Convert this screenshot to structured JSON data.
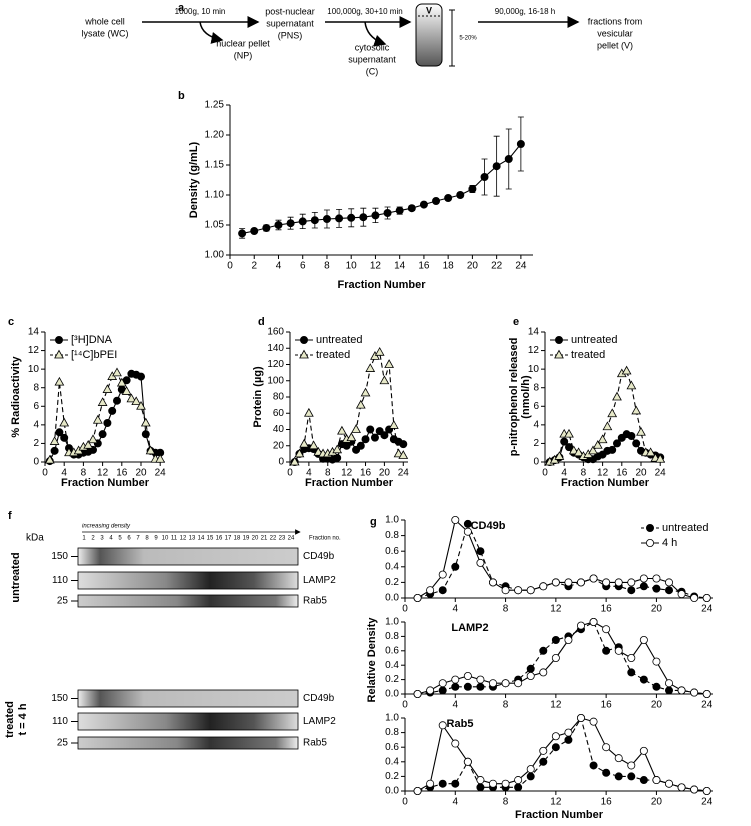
{
  "panel_letters": [
    "a",
    "b",
    "c",
    "d",
    "e",
    "f",
    "g"
  ],
  "scheme": [
    "whole cell",
    "lysate (WC)",
    "1000g, 10 min",
    "nuclear pellet",
    "(NP)",
    "post-nuclear",
    "supernatant",
    "(PNS)",
    "100,000g, 30+10 min",
    "cytosolic",
    "supernatant",
    "(C)",
    "V",
    "5-20%",
    "90,000g, 16-18 h",
    "fractions from",
    "vesicular",
    "pellet (V)"
  ],
  "blot": {
    "unit": "kDa",
    "direction": "increasing density",
    "lanes": [
      "1",
      "2",
      "3",
      "4",
      "5",
      "6",
      "7",
      "8",
      "9",
      "10",
      "11",
      "12",
      "13",
      "14",
      "15",
      "16",
      "17",
      "18",
      "19",
      "20",
      "21",
      "22",
      "23",
      "24"
    ],
    "lanes_label": "Fraction no.",
    "groups": [
      {
        "label": [
          "untreated"
        ],
        "rows": [
          {
            "kda": "150",
            "protein": "CD49b"
          },
          {
            "kda": "110",
            "protein": "LAMP2"
          },
          {
            "kda": "25",
            "protein": "Rab5"
          }
        ]
      },
      {
        "label": [
          "treated",
          "t = 4 h"
        ],
        "rows": [
          {
            "kda": "150",
            "protein": "CD49b"
          },
          {
            "kda": "110",
            "protein": "LAMP2"
          },
          {
            "kda": "25",
            "protein": "Rab5"
          }
        ]
      }
    ]
  },
  "chart_data": [
    {
      "type": "line",
      "ylabel": "Density (g/mL)",
      "xlabel": "Fraction Number",
      "x": [
        1,
        2,
        3,
        4,
        5,
        6,
        7,
        8,
        9,
        10,
        11,
        12,
        13,
        14,
        15,
        16,
        17,
        18,
        19,
        20,
        21,
        22,
        23,
        24
      ],
      "xlim": [
        0,
        25
      ],
      "xticks": [
        0,
        2,
        4,
        6,
        8,
        10,
        12,
        14,
        16,
        18,
        20,
        22,
        24
      ],
      "ylim": [
        1.0,
        1.25
      ],
      "yticks": [
        {
          "value": 1.0,
          "label": "1.00"
        },
        1.05,
        {
          "value": 1.1,
          "label": "1.10"
        },
        1.15,
        {
          "value": 1.2,
          "label": "1.20"
        },
        1.25
      ],
      "series": [
        {
          "color": "#000",
          "fill": "#000",
          "marker": "circle",
          "dash": false,
          "values": [
            1.036,
            1.04,
            1.045,
            1.05,
            1.053,
            1.056,
            1.058,
            1.06,
            1.061,
            1.062,
            1.063,
            1.066,
            1.07,
            1.074,
            1.078,
            1.084,
            1.09,
            1.095,
            1.1,
            1.11,
            1.13,
            1.148,
            1.16,
            1.185
          ],
          "errors": [
            0.008,
            0.003,
            0.005,
            0.008,
            0.01,
            0.012,
            0.013,
            0.015,
            0.015,
            0.015,
            0.015,
            0.012,
            0.01,
            0.006,
            0.004,
            0.003,
            0.003,
            0.003,
            0.004,
            0.006,
            0.03,
            0.05,
            0.05,
            0.045
          ]
        }
      ]
    },
    {
      "type": "line",
      "ylabel": "% Radioactivity",
      "xlabel": "Fraction Number",
      "legend": "top-left",
      "x": [
        1,
        2,
        3,
        4,
        5,
        6,
        7,
        8,
        9,
        10,
        11,
        12,
        13,
        14,
        15,
        16,
        17,
        18,
        19,
        20,
        21,
        22,
        23,
        24
      ],
      "xlim": [
        0,
        25
      ],
      "xticks": [
        0,
        4,
        8,
        12,
        16,
        20,
        24
      ],
      "ylim": [
        0,
        14
      ],
      "yticks": [
        0,
        2,
        4,
        6,
        8,
        10,
        12,
        14
      ],
      "series": [
        {
          "name": "[³H]DNA",
          "color": "#000",
          "fill": "#000",
          "marker": "circle",
          "dash": false,
          "values": [
            0.1,
            1.2,
            3.2,
            2.6,
            1.5,
            0.8,
            0.8,
            1.0,
            1.1,
            1.3,
            2.0,
            3.0,
            4.2,
            5.5,
            6.6,
            7.8,
            8.8,
            9.5,
            9.4,
            9.2,
            3.0,
            1.2,
            1.0,
            1.0
          ]
        },
        {
          "name": "[¹⁴C]bPEI",
          "color": "#000",
          "fill": "#e6e8c8",
          "marker": "triangle",
          "dash": true,
          "values": [
            0.2,
            2.2,
            8.6,
            4.2,
            1.0,
            1.0,
            1.2,
            1.6,
            1.8,
            2.4,
            4.5,
            6.4,
            7.8,
            9.2,
            9.6,
            8.5,
            7.6,
            6.8,
            6.5,
            6.0,
            4.2,
            1.2,
            0.3,
            0.3
          ]
        }
      ]
    },
    {
      "type": "line",
      "ylabel": "Protein (µg)",
      "xlabel": "Fraction Number",
      "legend": "top-left",
      "x": [
        1,
        2,
        3,
        4,
        5,
        6,
        7,
        8,
        9,
        10,
        11,
        12,
        13,
        14,
        15,
        16,
        17,
        18,
        19,
        20,
        21,
        22,
        23,
        24
      ],
      "xlim": [
        0,
        25
      ],
      "xticks": [
        0,
        4,
        8,
        12,
        16,
        20,
        24
      ],
      "ylim": [
        0,
        160
      ],
      "yticks": [
        0,
        20,
        40,
        60,
        80,
        100,
        120,
        140,
        160
      ],
      "series": [
        {
          "name": "untreated",
          "color": "#000",
          "fill": "#000",
          "marker": "circle",
          "dash": false,
          "values": [
            0,
            10,
            16,
            17,
            16,
            10,
            4,
            4,
            3,
            5,
            22,
            20,
            25,
            15,
            20,
            28,
            40,
            30,
            38,
            33,
            40,
            28,
            25,
            22
          ]
        },
        {
          "name": "treated",
          "color": "#000",
          "fill": "#e6e8c8",
          "marker": "triangle",
          "dash": true,
          "values": [
            0,
            10,
            22,
            60,
            20,
            12,
            10,
            10,
            12,
            15,
            38,
            28,
            30,
            40,
            70,
            85,
            115,
            130,
            135,
            100,
            120,
            45,
            10,
            8
          ]
        }
      ]
    },
    {
      "type": "line",
      "ylabel": [
        "p-nitrophenol released",
        "(nmol/h)"
      ],
      "xlabel": "Fraction Number",
      "legend": "top-left",
      "x": [
        1,
        2,
        3,
        4,
        5,
        6,
        7,
        8,
        9,
        10,
        11,
        12,
        13,
        14,
        15,
        16,
        17,
        18,
        19,
        20,
        21,
        22,
        23,
        24
      ],
      "xlim": [
        0,
        25
      ],
      "xticks": [
        0,
        4,
        8,
        12,
        16,
        20,
        24
      ],
      "ylim": [
        0,
        14
      ],
      "yticks": [
        0,
        2,
        4,
        6,
        8,
        10,
        12,
        14
      ],
      "series": [
        {
          "name": "untreated",
          "color": "#000",
          "fill": "#000",
          "marker": "circle",
          "dash": false,
          "values": [
            0,
            0.2,
            0.5,
            2.2,
            1.6,
            1.0,
            0.8,
            0.5,
            0.3,
            0.3,
            0.6,
            0.8,
            1.2,
            1.3,
            2.0,
            2.6,
            3.0,
            2.8,
            2.0,
            1.2,
            1.0,
            0.8,
            0.7,
            0.5
          ]
        },
        {
          "name": "treated",
          "color": "#000",
          "fill": "#e6e8c8",
          "marker": "triangle",
          "dash": true,
          "values": [
            0,
            0.2,
            0.6,
            3.0,
            3.0,
            1.2,
            1.0,
            0.6,
            0.8,
            1.2,
            1.8,
            2.4,
            3.8,
            5.2,
            7.0,
            9.5,
            9.8,
            8.2,
            5.5,
            3.2,
            1.0,
            1.0,
            0.4,
            0.3
          ]
        }
      ]
    },
    {
      "type": "multi-line",
      "ylabel": "Relative Density",
      "xlabel": "Fraction Number",
      "legend": "top-right",
      "x": [
        1,
        2,
        3,
        4,
        5,
        6,
        7,
        8,
        9,
        10,
        11,
        12,
        13,
        14,
        15,
        16,
        17,
        18,
        19,
        20,
        21,
        22,
        23,
        24
      ],
      "xlim": [
        0,
        24.5
      ],
      "xticks": [
        0,
        4,
        8,
        12,
        16,
        20,
        24
      ],
      "ylim": [
        0,
        1
      ],
      "yticks": [
        {
          "value": 0,
          "label": "0.0"
        },
        0.2,
        0.4,
        0.6,
        0.8,
        {
          "value": 1,
          "label": "1.0"
        }
      ],
      "series": [
        {
          "name": "untreated",
          "color": "#000",
          "fill": "#000",
          "marker": "circle",
          "dash": true
        },
        {
          "name": "4 h",
          "color": "#000",
          "fill": "#fff",
          "marker": "circle",
          "dash": false
        }
      ],
      "panels": [
        {
          "title": "CD49b",
          "series": [
            {
              "values": [
                0,
                0.05,
                0.1,
                0.4,
                0.95,
                0.6,
                0.2,
                0.15,
                0.1,
                0.1,
                0.15,
                0.2,
                0.15,
                0.2,
                0.25,
                0.15,
                0.15,
                0.1,
                0.15,
                0.12,
                0.1,
                0.08,
                0.02,
                0
              ]
            },
            {
              "values": [
                0,
                0.1,
                0.3,
                1.0,
                0.85,
                0.45,
                0.2,
                0.1,
                0.1,
                0.1,
                0.15,
                0.2,
                0.2,
                0.2,
                0.25,
                0.2,
                0.2,
                0.2,
                0.25,
                0.25,
                0.2,
                0.05,
                0,
                0
              ]
            }
          ]
        },
        {
          "title": "LAMP2",
          "series": [
            {
              "values": [
                0,
                0.02,
                0.05,
                0.1,
                0.1,
                0.1,
                0.1,
                0.15,
                0.2,
                0.35,
                0.6,
                0.75,
                0.8,
                0.9,
                1.0,
                0.6,
                0.65,
                0.3,
                0.2,
                0.1,
                0.05,
                0.05,
                0.02,
                0
              ]
            },
            {
              "values": [
                0,
                0.05,
                0.15,
                0.2,
                0.25,
                0.2,
                0.15,
                0.15,
                0.15,
                0.25,
                0.3,
                0.5,
                0.75,
                0.95,
                1.0,
                0.9,
                0.6,
                0.5,
                0.75,
                0.45,
                0.15,
                0.05,
                0.02,
                0
              ]
            }
          ]
        },
        {
          "title": "Rab5",
          "series": [
            {
              "values": [
                0,
                0.05,
                0.1,
                0.1,
                0.4,
                0.05,
                0.05,
                0.05,
                0.05,
                0.2,
                0.4,
                0.6,
                0.7,
                1.0,
                0.35,
                0.25,
                0.2,
                0.2,
                0.15,
                0.15,
                0.1,
                0.05,
                0.02,
                0
              ]
            },
            {
              "values": [
                0,
                0.1,
                0.9,
                0.65,
                0.4,
                0.15,
                0.1,
                0.1,
                0.15,
                0.3,
                0.55,
                0.75,
                0.8,
                1.0,
                0.95,
                0.6,
                0.45,
                0.35,
                0.55,
                0.15,
                0.1,
                0.05,
                0.02,
                0
              ]
            }
          ]
        }
      ]
    }
  ]
}
